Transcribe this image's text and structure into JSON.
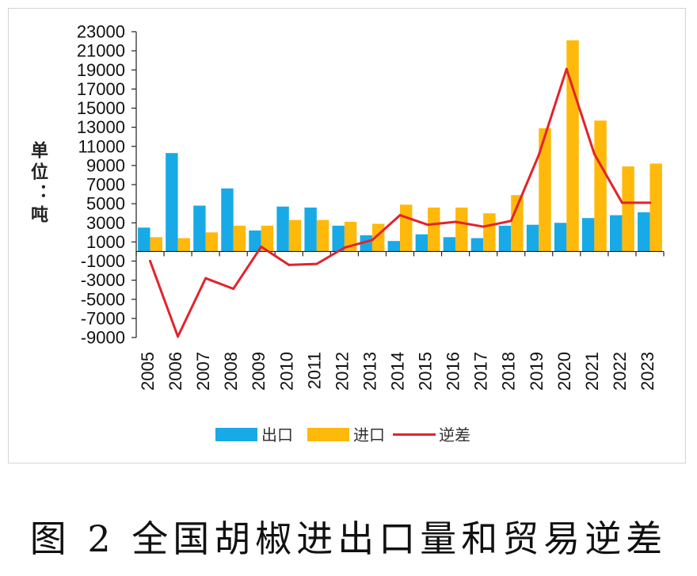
{
  "chart_data": {
    "type": "bar",
    "title": "图 2 全国胡椒进出口量和贸易逆差",
    "xlabel": "",
    "ylabel": "单位：吨",
    "categories": [
      "2005",
      "2006",
      "2007",
      "2008",
      "2009",
      "2010",
      "2011",
      "2012",
      "2013",
      "2014",
      "2015",
      "2016",
      "2017",
      "2018",
      "2019",
      "2020",
      "2021",
      "2022",
      "2023"
    ],
    "series": [
      {
        "name": "出口",
        "type": "bar",
        "color": "#18AAE6",
        "values": [
          2500,
          10300,
          4800,
          6600,
          2200,
          4700,
          4600,
          2700,
          1700,
          1100,
          1800,
          1500,
          1400,
          2700,
          2800,
          3000,
          3500,
          3800,
          4100
        ]
      },
      {
        "name": "进口",
        "type": "bar",
        "color": "#FFB90A",
        "values": [
          1500,
          1400,
          2000,
          2700,
          2700,
          3300,
          3300,
          3100,
          2900,
          4900,
          4600,
          4600,
          4000,
          5900,
          12900,
          22100,
          13700,
          8900,
          9200
        ]
      },
      {
        "name": "逆差",
        "type": "line",
        "color": "#E3232A",
        "values": [
          -1000,
          -8900,
          -2800,
          -3900,
          500,
          -1400,
          -1300,
          400,
          1200,
          3800,
          2800,
          3100,
          2600,
          3200,
          10100,
          19100,
          10200,
          5100,
          5100
        ]
      }
    ],
    "ylim": [
      -9000,
      23000
    ],
    "yticks": [
      23000,
      21000,
      19000,
      17000,
      15000,
      13000,
      11000,
      9000,
      7000,
      5000,
      3000,
      1000,
      -1000,
      -3000,
      -5000,
      -7000,
      -9000
    ],
    "grid": false,
    "legend": "bottom"
  }
}
